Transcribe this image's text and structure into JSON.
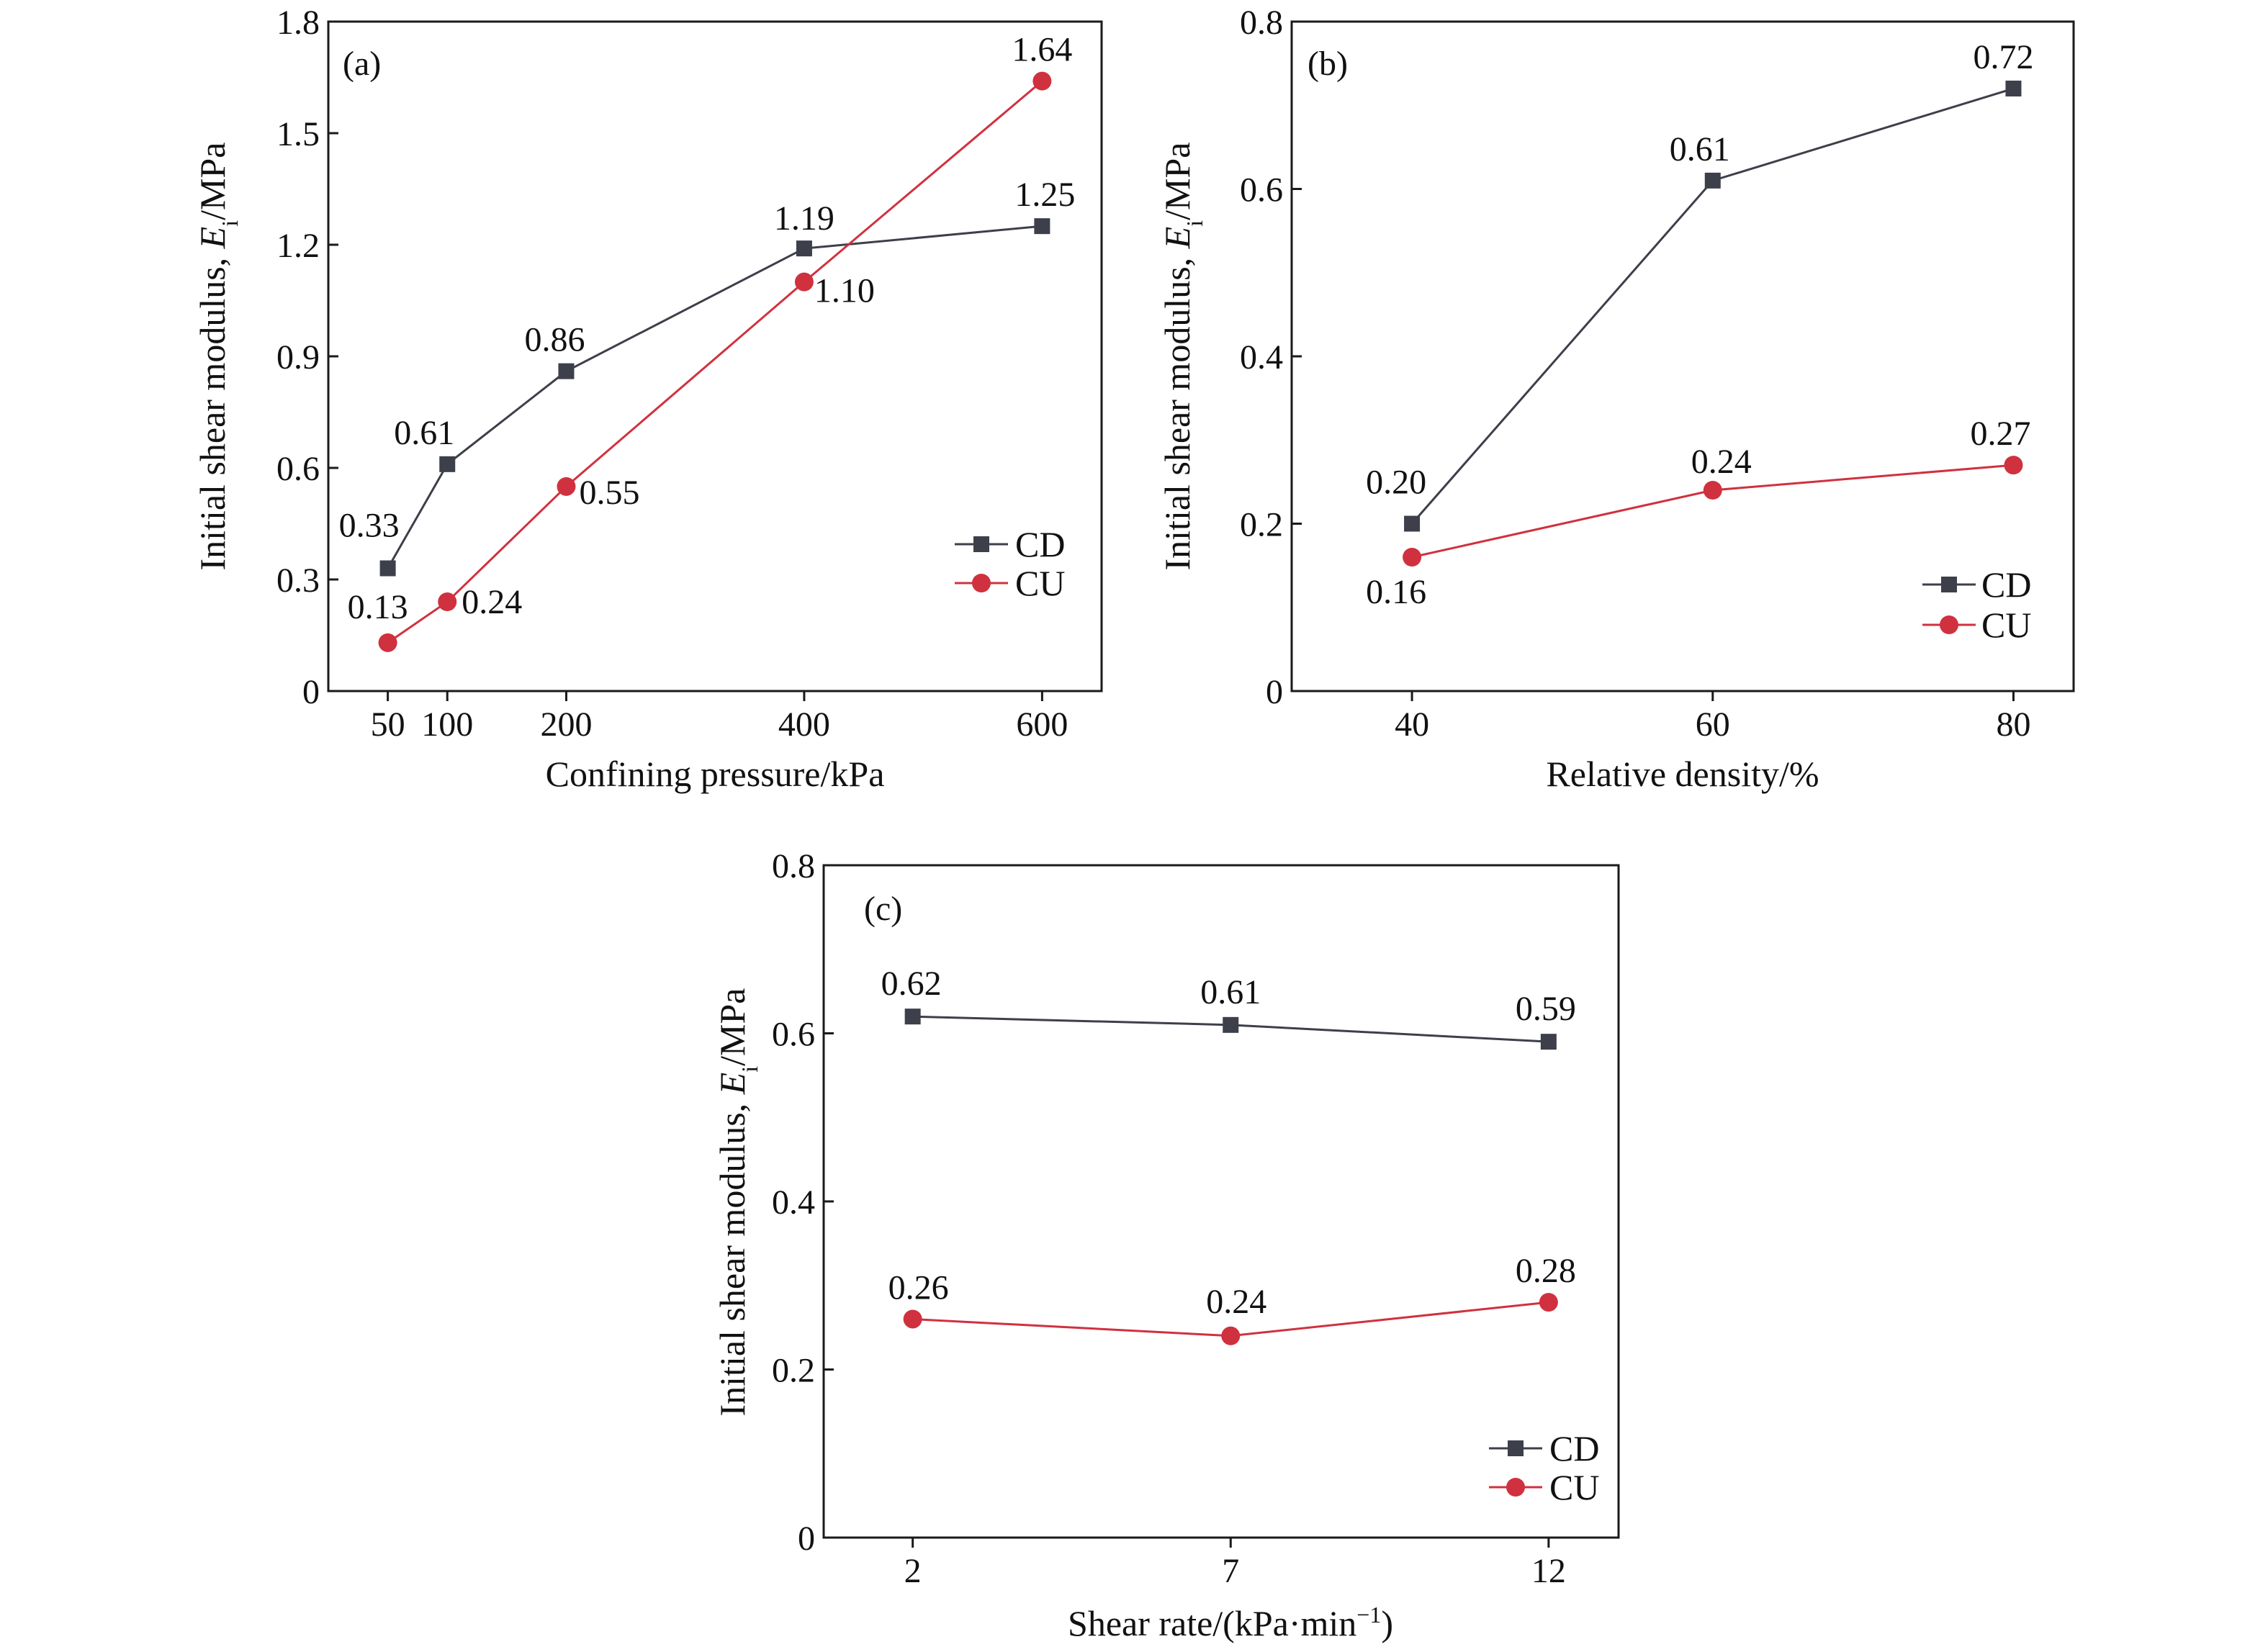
{
  "chart_data": [
    {
      "type": "line",
      "panel_label": "(a)",
      "xlabel": "Confining pressure/kPa",
      "ylabel_prefix": "Initial shear modulus, ",
      "ylabel_symbol": "E",
      "ylabel_subscript": "i",
      "ylabel_suffix": "/MPa",
      "x_ticks": [
        50,
        100,
        200,
        400,
        600
      ],
      "x_tick_labels": [
        "50",
        "100",
        "200",
        "400",
        "600"
      ],
      "xlim": [
        0,
        650
      ],
      "ylim": [
        0,
        1.8
      ],
      "y_ticks": [
        0,
        0.3,
        0.6,
        0.9,
        1.2,
        1.5,
        1.8
      ],
      "y_tick_labels": [
        "0",
        "0.3",
        "0.6",
        "0.9",
        "1.2",
        "1.5",
        "1.8"
      ],
      "legend_position": "right, lower-middle",
      "series": [
        {
          "name": "CD",
          "marker": "square",
          "color": "#3d3f4a",
          "x": [
            50,
            100,
            200,
            400,
            600
          ],
          "values": [
            0.33,
            0.61,
            0.86,
            1.19,
            1.25
          ],
          "labels": [
            "0.33",
            "0.61",
            "0.86",
            "1.19",
            "1.25"
          ]
        },
        {
          "name": "CU",
          "marker": "circle",
          "color": "#d0313f",
          "x": [
            50,
            100,
            200,
            400,
            600
          ],
          "values": [
            0.13,
            0.24,
            0.55,
            1.1,
            1.64
          ],
          "labels": [
            "0.13",
            "0.24",
            "0.55",
            "1.10",
            "1.64"
          ]
        }
      ]
    },
    {
      "type": "line",
      "panel_label": "(b)",
      "xlabel": "Relative density/%",
      "ylabel_prefix": "Initial shear modulus, ",
      "ylabel_symbol": "E",
      "ylabel_subscript": "i",
      "ylabel_suffix": "/MPa",
      "x_ticks": [
        40,
        60,
        80
      ],
      "x_tick_labels": [
        "40",
        "60",
        "80"
      ],
      "xlim": [
        32,
        84
      ],
      "ylim": [
        0,
        0.8
      ],
      "y_ticks": [
        0,
        0.2,
        0.4,
        0.6,
        0.8
      ],
      "y_tick_labels": [
        "0",
        "0.2",
        "0.4",
        "0.6",
        "0.8"
      ],
      "legend_position": "bottom-right",
      "series": [
        {
          "name": "CD",
          "marker": "square",
          "color": "#3d3f4a",
          "x": [
            40,
            60,
            80
          ],
          "values": [
            0.2,
            0.61,
            0.72
          ],
          "labels": [
            "0.20",
            "0.61",
            "0.72"
          ]
        },
        {
          "name": "CU",
          "marker": "circle",
          "color": "#d0313f",
          "x": [
            40,
            60,
            80
          ],
          "values": [
            0.16,
            0.24,
            0.27
          ],
          "labels": [
            "0.16",
            "0.24",
            "0.27"
          ]
        }
      ]
    },
    {
      "type": "line",
      "panel_label": "(c)",
      "xlabel_prefix": "Shear rate/(kPa·min",
      "xlabel_superscript": "−1",
      "xlabel_suffix": ")",
      "ylabel_prefix": "Initial shear modulus, ",
      "ylabel_symbol": "E",
      "ylabel_subscript": "i",
      "ylabel_suffix": "/MPa",
      "x_ticks": [
        2,
        7,
        12
      ],
      "x_tick_labels": [
        "2",
        "7",
        "12"
      ],
      "xlim": [
        0.6,
        13.1
      ],
      "ylim": [
        0,
        0.8
      ],
      "y_ticks": [
        0,
        0.2,
        0.4,
        0.6,
        0.8
      ],
      "y_tick_labels": [
        "0",
        "0.2",
        "0.4",
        "0.6",
        "0.8"
      ],
      "legend_position": "bottom-right",
      "series": [
        {
          "name": "CD",
          "marker": "square",
          "color": "#3d3f4a",
          "x": [
            2,
            7,
            12
          ],
          "values": [
            0.62,
            0.61,
            0.59
          ],
          "labels": [
            "0.62",
            "0.61",
            "0.59"
          ]
        },
        {
          "name": "CU",
          "marker": "circle",
          "color": "#d0313f",
          "x": [
            2,
            7,
            12
          ],
          "values": [
            0.26,
            0.24,
            0.28
          ],
          "labels": [
            "0.26",
            "0.24",
            "0.28"
          ]
        }
      ]
    }
  ]
}
